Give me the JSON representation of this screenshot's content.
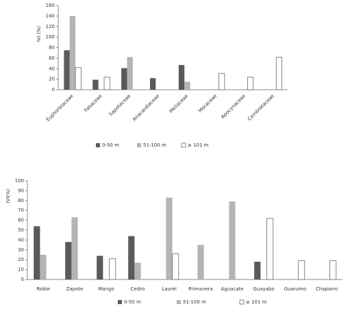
{
  "chart_data": [
    {
      "type": "bar",
      "y_label": "IVI (%)",
      "categories": [
        "Euphorbiaceae",
        "Fabaceae",
        "Sapotaceae",
        "Anacardiaceae",
        "Meliaceae",
        "Moraceae",
        "Apocynaceae",
        "Combretaceae"
      ],
      "series": [
        {
          "name": "0-50 m",
          "color": "#5a5a5a",
          "values": [
            75,
            19,
            41,
            22,
            47,
            0,
            0,
            0
          ]
        },
        {
          "name": "51-100 m",
          "color": "#b4b4b4",
          "values": [
            140,
            0,
            62,
            0,
            15,
            0,
            0,
            0
          ]
        },
        {
          "name": "≥ 101 m",
          "color": "#ffffff",
          "values": [
            42,
            24,
            0,
            0,
            0,
            31,
            24,
            62
          ]
        }
      ],
      "ylim": [
        0,
        160
      ],
      "yticks": [
        0,
        20,
        40,
        60,
        80,
        100,
        120,
        140,
        160
      ],
      "rotate_labels": true
    },
    {
      "type": "bar",
      "y_label": "IVI(%)",
      "categories": [
        "Roble",
        "Zapote",
        "Mango",
        "Cedro",
        "Laurel",
        "Primavera",
        "Aguacate",
        "Guayabo",
        "Guarumo",
        "Chaparro"
      ],
      "series": [
        {
          "name": "0-50 m",
          "color": "#5a5a5a",
          "values": [
            54,
            38,
            24,
            44,
            0,
            0,
            0,
            18,
            0,
            0
          ]
        },
        {
          "name": "51-100 m",
          "color": "#b4b4b4",
          "values": [
            25,
            63,
            0,
            17,
            83,
            35,
            79,
            0,
            0,
            0
          ]
        },
        {
          "name": "≥ 101 m",
          "color": "#ffffff",
          "values": [
            0,
            0,
            21,
            0,
            26,
            0,
            0,
            62,
            19,
            19
          ]
        }
      ],
      "ylim": [
        0,
        100
      ],
      "yticks": [
        0,
        10,
        20,
        30,
        40,
        50,
        60,
        70,
        80,
        90,
        100
      ],
      "rotate_labels": false
    }
  ]
}
